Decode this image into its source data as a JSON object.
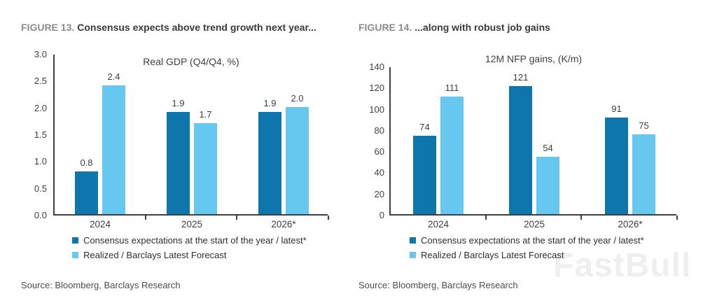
{
  "figures": [
    {
      "label": "FIGURE 13.",
      "title": "Consensus expects above trend growth next year...",
      "source": "Source: Bloomberg, Barclays Research"
    },
    {
      "label": "FIGURE 14.",
      "title": "...along with robust job gains",
      "source": "Source: Bloomberg, Barclays Research"
    }
  ],
  "legend": {
    "series1": "Consensus expectations at the start of the year / latest*",
    "series2": "Realized / Barclays Latest Forecast"
  },
  "colors": {
    "series1": "#0e76ac",
    "series2": "#66c8ee",
    "axis": "#3f3f3f"
  },
  "watermark": "FastBull",
  "chart_data": [
    {
      "type": "bar",
      "title": "Real GDP (Q4/Q4, %)",
      "categories": [
        "2024",
        "2025",
        "2026*"
      ],
      "series": [
        {
          "name": "Consensus expectations at the start of the year / latest*",
          "values": [
            0.8,
            1.9,
            1.9
          ],
          "labels": [
            "0.8",
            "1.9",
            "1.9"
          ]
        },
        {
          "name": "Realized / Barclays Latest Forecast",
          "values": [
            2.4,
            1.7,
            2.0
          ],
          "labels": [
            "2.4",
            "1.7",
            "2.0"
          ]
        }
      ],
      "xlabel": "",
      "ylabel": "",
      "ylim": [
        0,
        3.0
      ],
      "yticks": [
        "3.0",
        "2.5",
        "2.0",
        "1.5",
        "1.0",
        "0.5",
        "0.0"
      ],
      "grid": false,
      "legend_position": "bottom"
    },
    {
      "type": "bar",
      "title": "12M NFP gains, (K/m)",
      "categories": [
        "2024",
        "2025",
        "2026*"
      ],
      "series": [
        {
          "name": "Consensus expectations at the start of the year / latest*",
          "values": [
            74,
            121,
            91
          ],
          "labels": [
            "74",
            "121",
            "91"
          ]
        },
        {
          "name": "Realized / Barclays Latest Forecast",
          "values": [
            111,
            54,
            75
          ],
          "labels": [
            "111",
            "54",
            "75"
          ]
        }
      ],
      "xlabel": "",
      "ylabel": "",
      "ylim": [
        0,
        140
      ],
      "yticks": [
        "140",
        "120",
        "100",
        "80",
        "60",
        "40",
        "20",
        "0"
      ],
      "grid": false,
      "legend_position": "bottom"
    }
  ]
}
